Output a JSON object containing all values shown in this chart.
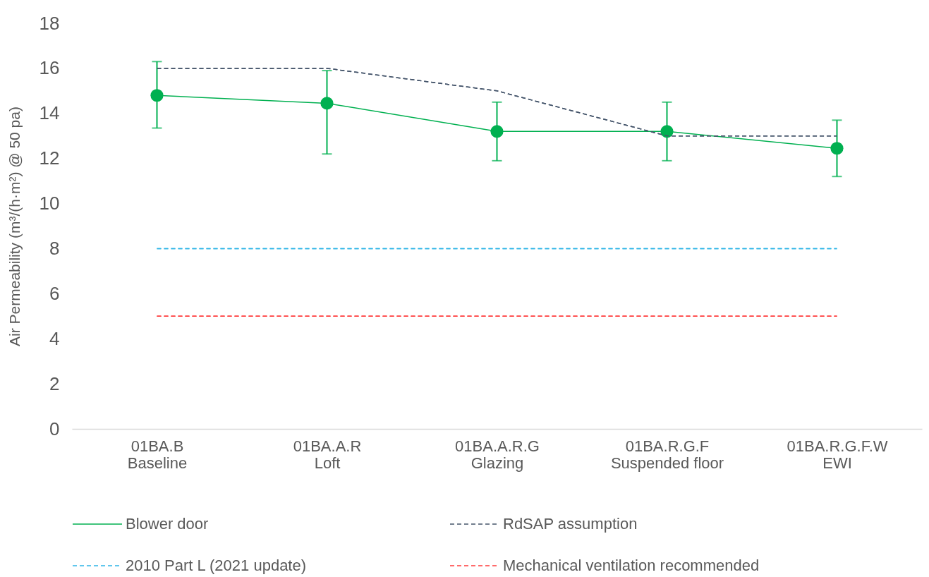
{
  "chart_data": {
    "type": "line",
    "ylabel": "Air Permeability (m³/(h·m²) @ 50 pa)",
    "categories": [
      "01BA.B\nBaseline",
      "01BA.A.R\nLoft",
      "01BA.A.R.G\nGlazing",
      "01BA.R.G.F\nSuspended floor",
      "01BA.R.G.F.W\nEWI"
    ],
    "ylim": [
      0,
      18
    ],
    "yticks": [
      0,
      2,
      4,
      6,
      8,
      10,
      12,
      14,
      16,
      18
    ],
    "grid": false,
    "legend": "bottom",
    "series": [
      {
        "name": "Blower door",
        "color": "#00b050",
        "values": [
          14.8,
          14.45,
          13.2,
          13.2,
          12.45
        ],
        "errors": [
          [
            13.35,
            16.3
          ],
          [
            12.2,
            15.9
          ],
          [
            11.9,
            14.5
          ],
          [
            11.9,
            14.5
          ],
          [
            11.2,
            13.7
          ]
        ],
        "marker": "circle",
        "line_style": "solid"
      },
      {
        "name": "RdSAP assumption",
        "color": "#44546a",
        "values": [
          16,
          16,
          15,
          13,
          13
        ],
        "marker": "none",
        "line_style": "dashed"
      },
      {
        "name": "2010 Part L (2021 update)",
        "color": "#2eb5e8",
        "values": [
          8,
          8,
          8,
          8,
          8
        ],
        "marker": "none",
        "line_style": "dashed"
      },
      {
        "name": "Mechanical ventilation  recommended",
        "color": "#ff3b3b",
        "values": [
          5,
          5,
          5,
          5,
          5
        ],
        "marker": "none",
        "line_style": "dashed"
      }
    ]
  }
}
